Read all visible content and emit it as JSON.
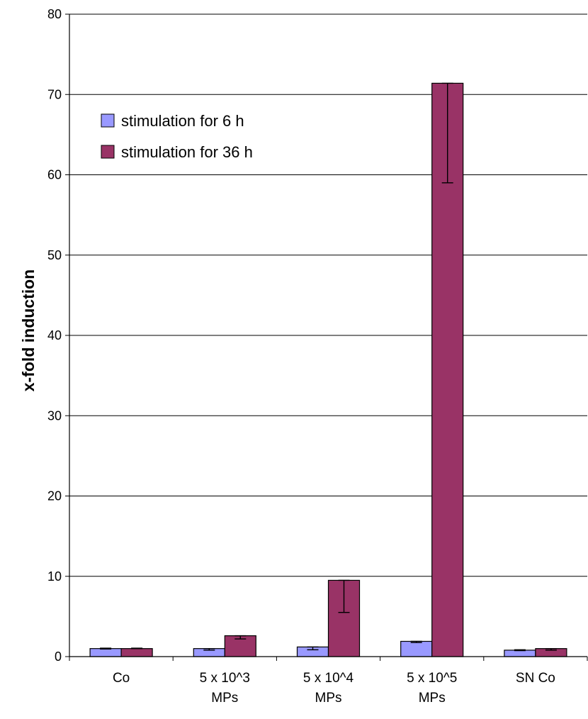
{
  "chart_data": {
    "type": "bar",
    "title": "",
    "xlabel": "",
    "ylabel": "x-fold induction",
    "ylim": [
      0,
      80
    ],
    "yticks": [
      0,
      10,
      20,
      30,
      40,
      50,
      60,
      70,
      80
    ],
    "grid": true,
    "legend_position": "top-left",
    "categories": [
      [
        "Co"
      ],
      [
        "5 x 10^3",
        "MPs"
      ],
      [
        "5 x 10^4",
        "MPs"
      ],
      [
        "5 x 10^5",
        "MPs"
      ],
      [
        "SN Co"
      ]
    ],
    "series": [
      {
        "name": "stimulation for 6 h",
        "color": "#9999ff",
        "values": [
          1.0,
          1.0,
          1.2,
          1.9,
          0.8
        ],
        "error_low": [
          0.95,
          0.8,
          0.85,
          1.75,
          0.75
        ],
        "error_high": [
          1.05,
          1.0,
          1.2,
          1.9,
          0.85
        ]
      },
      {
        "name": "stimulation for 36 h",
        "color": "#993366",
        "values": [
          1.0,
          2.6,
          9.5,
          71.4,
          1.0
        ],
        "error_low": [
          1.0,
          2.2,
          5.5,
          59.0,
          0.8
        ],
        "error_high": [
          1.05,
          2.6,
          9.5,
          71.4,
          1.0
        ]
      }
    ]
  }
}
